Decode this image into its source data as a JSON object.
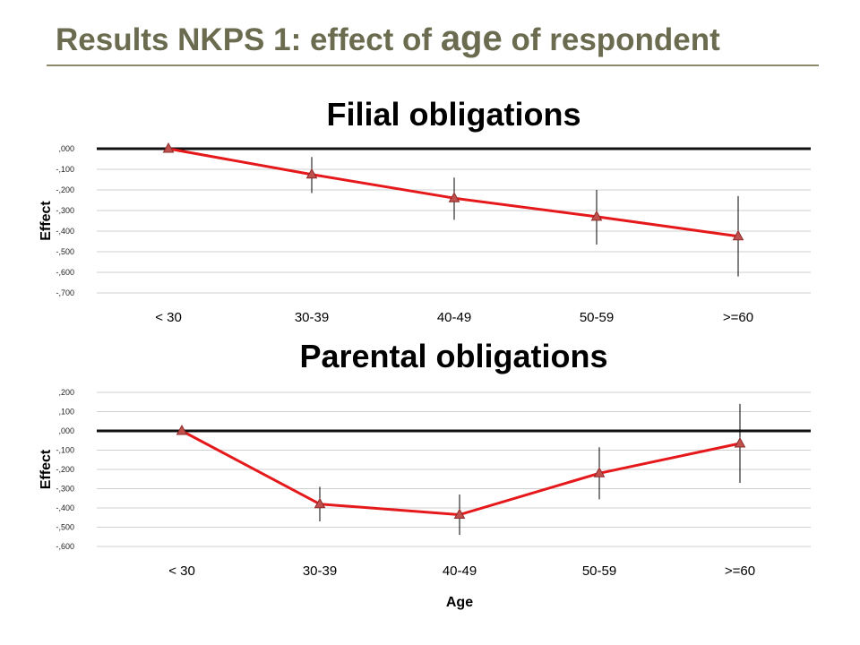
{
  "slide": {
    "title_part1": "Results NKPS 1: effect of ",
    "title_em": "age",
    "title_part2": " of respondent"
  },
  "colors": {
    "title": "#6b6b50",
    "rule": "#8c8a6a",
    "series_line": "#e5191b",
    "marker_fill": "#c0504d"
  },
  "chart_data": [
    {
      "type": "line",
      "title": "Filial obligations",
      "xlabel": "",
      "ylabel": "Effect",
      "categories": [
        "< 30",
        "30-39",
        "40-49",
        "50-59",
        ">=60"
      ],
      "series": [
        {
          "values": [
            0.0,
            -0.125,
            -0.24,
            -0.33,
            -0.425
          ],
          "error_low": [
            0.0,
            -0.215,
            -0.345,
            -0.465,
            -0.62
          ],
          "error_high": [
            0.0,
            -0.04,
            -0.14,
            -0.2,
            -0.23
          ]
        }
      ],
      "ylim": [
        -0.7,
        0.0
      ],
      "yticks": [
        0.0,
        -0.1,
        -0.2,
        -0.3,
        -0.4,
        -0.5,
        -0.6,
        -0.7
      ],
      "ytick_labels": [
        ",000",
        "-,100",
        "-,200",
        "-,300",
        "-,400",
        "-,500",
        "-,600",
        "-,700"
      ],
      "grid": true,
      "marker": "triangle"
    },
    {
      "type": "line",
      "title": "Parental obligations",
      "xlabel": "Age",
      "ylabel": "Effect",
      "categories": [
        "< 30",
        "30-39",
        "40-49",
        "50-59",
        ">=60"
      ],
      "series": [
        {
          "values": [
            0.0,
            -0.38,
            -0.435,
            -0.22,
            -0.065
          ],
          "error_low": [
            0.0,
            -0.47,
            -0.54,
            -0.355,
            -0.27
          ],
          "error_high": [
            0.0,
            -0.29,
            -0.33,
            -0.085,
            0.14
          ]
        }
      ],
      "ylim": [
        -0.6,
        0.2
      ],
      "yticks": [
        0.2,
        0.1,
        0.0,
        -0.1,
        -0.2,
        -0.3,
        -0.4,
        -0.5,
        -0.6
      ],
      "ytick_labels": [
        ",200",
        ",100",
        ",000",
        "-,100",
        "-,200",
        "-,300",
        "-,400",
        "-,500",
        "-,600"
      ],
      "grid": true,
      "marker": "triangle"
    }
  ]
}
